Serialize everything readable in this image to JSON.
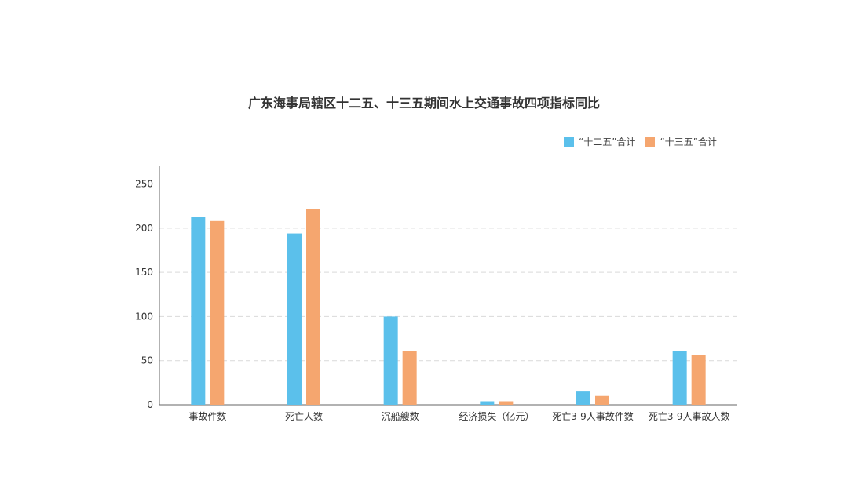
{
  "chart_data": {
    "type": "bar",
    "title": "广东海事局辖区十二五、十三五期间水上交通事故四项指标同比",
    "categories": [
      "事故件数",
      "死亡人数",
      "沉船艘数",
      "经济损失（亿元）",
      "死亡3-9人事故件数",
      "死亡3-9人事故人数"
    ],
    "series": [
      {
        "name": "“十二五”合计",
        "color": "#5BC0EB",
        "values": [
          213,
          194,
          100,
          4,
          15,
          61
        ]
      },
      {
        "name": "“十三五”合计",
        "color": "#F5A66F",
        "values": [
          208,
          222,
          61,
          4,
          10,
          56
        ]
      }
    ],
    "ylim": [
      0,
      270
    ],
    "yticks": [
      "0",
      "50",
      "100",
      "150",
      "200",
      "250"
    ],
    "grid": true,
    "legend_position": "top-right"
  }
}
